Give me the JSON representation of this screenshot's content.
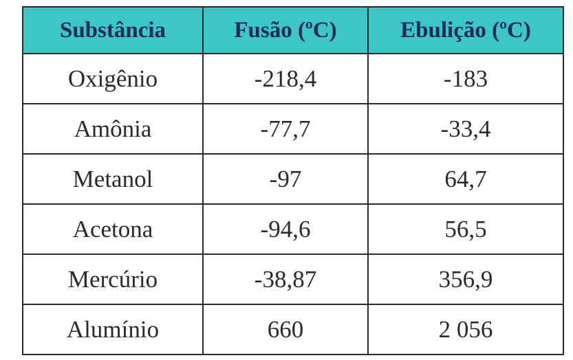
{
  "table": {
    "header": [
      "Substância",
      "Fusão (ºC)",
      "Ebulição (ºC)"
    ],
    "rows": [
      [
        "Oxigênio",
        "-218,4",
        "-183"
      ],
      [
        "Amônia",
        "-77,7",
        "-33,4"
      ],
      [
        "Metanol",
        "-97",
        "64,7"
      ],
      [
        "Acetona",
        "-94,6",
        "56,5"
      ],
      [
        "Mercúrio",
        "-38,87",
        "356,9"
      ],
      [
        "Alumínio",
        "660",
        "2 056"
      ]
    ]
  }
}
